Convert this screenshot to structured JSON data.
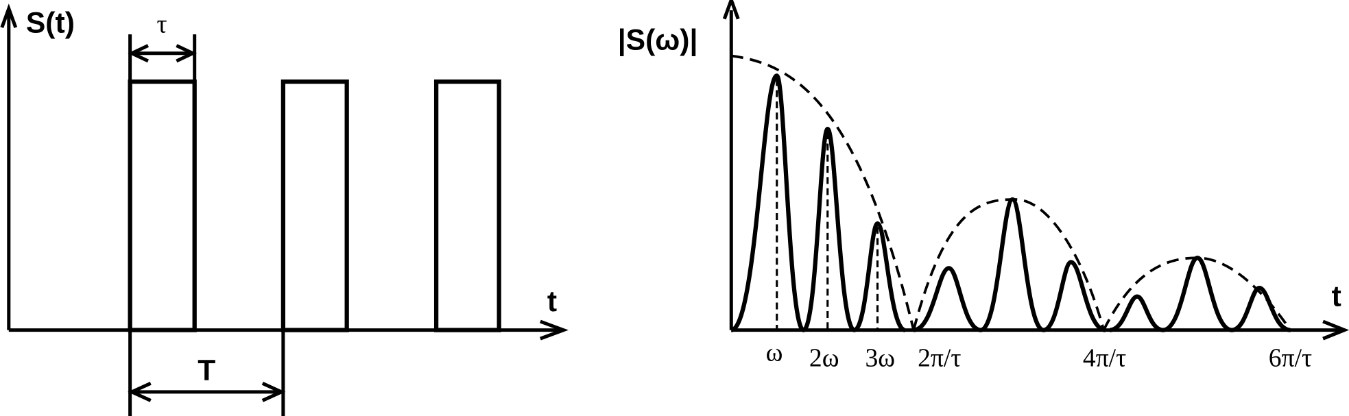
{
  "left_panel": {
    "y_label": "S(t)",
    "x_label": "t",
    "pulse_width_label": "τ",
    "period_label": "T"
  },
  "right_panel": {
    "y_label": "|S(ω)|",
    "x_label": "t",
    "tick_labels": [
      "ω",
      "2ω",
      "3ω",
      "2π/τ",
      "4π/τ",
      "6π/τ"
    ]
  }
}
